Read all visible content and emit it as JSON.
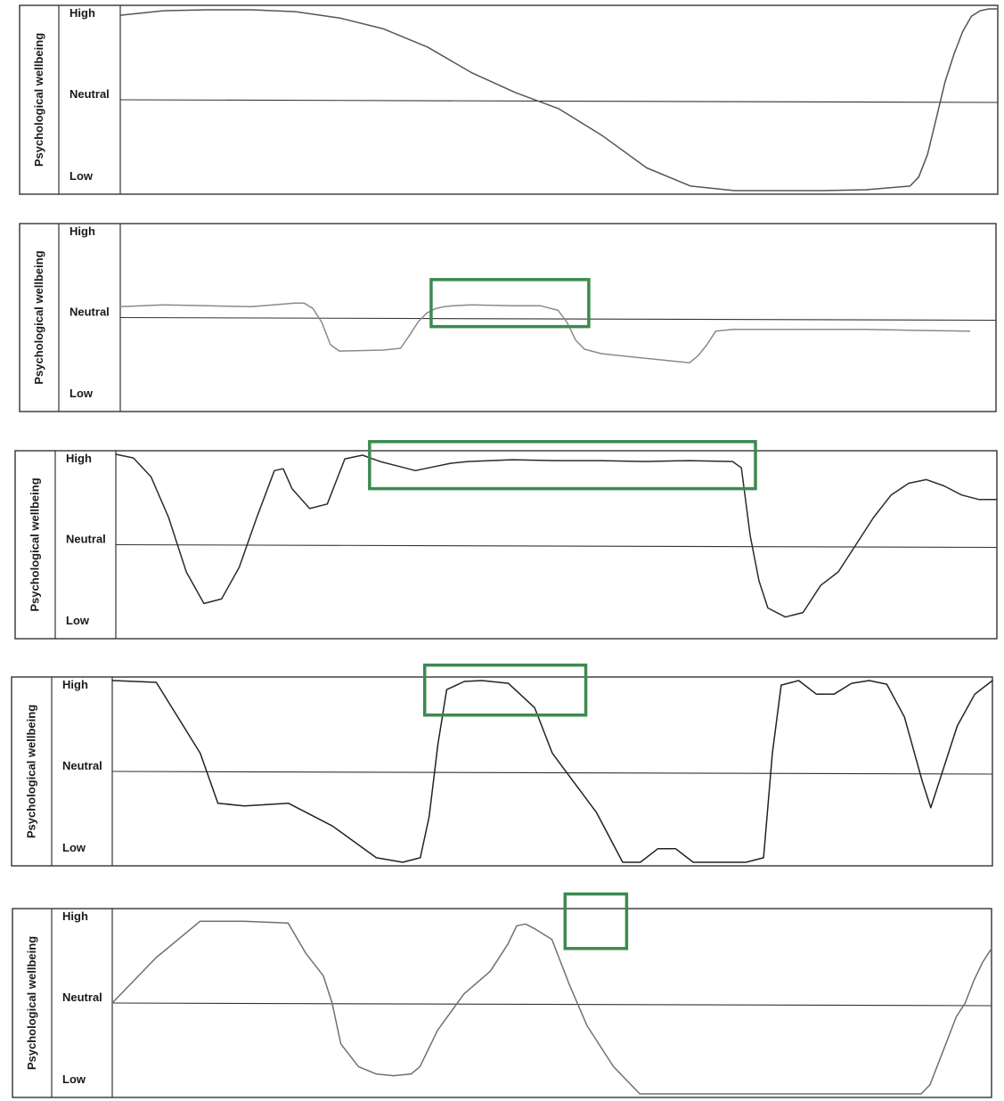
{
  "chart_data": [
    {
      "type": "line",
      "ylabel": "Psychological wellbeing",
      "ytick_labels": [
        "High",
        "Neutral",
        "Low"
      ],
      "ylim": [
        -1,
        1
      ],
      "xlim": [
        0,
        100
      ],
      "line_color": "#555555",
      "x": [
        0,
        5,
        10,
        15,
        20,
        25,
        30,
        35,
        40,
        45,
        50,
        55,
        60,
        65,
        70,
        75,
        80,
        85,
        90,
        91,
        92,
        93,
        94,
        95,
        96,
        97,
        98,
        99,
        100
      ],
      "y": [
        0.93,
        0.98,
        0.99,
        0.99,
        0.97,
        0.9,
        0.78,
        0.58,
        0.3,
        0.08,
        -0.1,
        -0.4,
        -0.75,
        -0.95,
        -1,
        -1,
        -1,
        -0.99,
        -0.95,
        -0.85,
        -0.6,
        -0.2,
        0.2,
        0.5,
        0.75,
        0.92,
        0.98,
        1,
        1
      ],
      "highlights": []
    },
    {
      "type": "line",
      "ylabel": "Psychological wellbeing",
      "ytick_labels": [
        "High",
        "Neutral",
        "Low"
      ],
      "ylim": [
        -1,
        1
      ],
      "xlim": [
        0,
        100
      ],
      "line_color": "#8a8a8a",
      "x": [
        0,
        5,
        10,
        15,
        20,
        21,
        22,
        23,
        24,
        25,
        30,
        32,
        33,
        34,
        35,
        36,
        37,
        38,
        40,
        45,
        48,
        50,
        51,
        52,
        53,
        55,
        60,
        65,
        66,
        67,
        68,
        70,
        75,
        80,
        85,
        90,
        97
      ],
      "y": [
        0.12,
        0.14,
        0.13,
        0.12,
        0.16,
        0.16,
        0.1,
        -0.05,
        -0.3,
        -0.37,
        -0.36,
        -0.34,
        -0.2,
        -0.05,
        0.05,
        0.1,
        0.12,
        0.13,
        0.14,
        0.13,
        0.13,
        0.08,
        -0.05,
        -0.25,
        -0.35,
        -0.4,
        -0.45,
        -0.5,
        -0.42,
        -0.3,
        -0.15,
        -0.13,
        -0.13,
        -0.13,
        -0.13,
        -0.14,
        -0.15
      ],
      "highlights": [
        {
          "x0": 35.5,
          "x1": 53.5,
          "y0": -0.1,
          "y1": 0.42
        }
      ]
    },
    {
      "type": "line",
      "ylabel": "Psychological wellbeing",
      "ytick_labels": [
        "High",
        "Neutral",
        "Low"
      ],
      "ylim": [
        -1,
        1
      ],
      "xlim": [
        0,
        100
      ],
      "line_color": "#2b2b2b",
      "x": [
        0,
        2,
        4,
        6,
        8,
        10,
        12,
        14,
        16,
        18,
        19,
        20,
        22,
        24,
        26,
        28,
        30,
        32,
        34,
        36,
        38,
        40,
        45,
        50,
        55,
        60,
        65,
        70,
        71,
        72,
        73,
        74,
        76,
        78,
        80,
        82,
        84,
        86,
        88,
        90,
        92,
        94,
        96,
        98,
        100
      ],
      "y": [
        1,
        0.96,
        0.75,
        0.3,
        -0.3,
        -0.65,
        -0.6,
        -0.25,
        0.3,
        0.82,
        0.84,
        0.62,
        0.4,
        0.45,
        0.95,
        0.99,
        0.92,
        0.87,
        0.82,
        0.86,
        0.9,
        0.92,
        0.94,
        0.93,
        0.93,
        0.92,
        0.93,
        0.92,
        0.85,
        0.1,
        -0.4,
        -0.7,
        -0.8,
        -0.75,
        -0.45,
        -0.3,
        0.0,
        0.3,
        0.55,
        0.68,
        0.72,
        0.65,
        0.55,
        0.5,
        0.5
      ],
      "highlights": [
        {
          "x0": 28.8,
          "x1": 72.6,
          "y0": 0.62,
          "y1": 1.14
        }
      ]
    },
    {
      "type": "line",
      "ylabel": "Psychological wellbeing",
      "ytick_labels": [
        "High",
        "Neutral",
        "Low"
      ],
      "ylim": [
        -1,
        1
      ],
      "xlim": [
        0,
        100
      ],
      "line_color": "#222222",
      "x": [
        0,
        5,
        10,
        12,
        15,
        20,
        25,
        30,
        33,
        35,
        36,
        37,
        38,
        40,
        42,
        45,
        48,
        50,
        55,
        58,
        60,
        62,
        64,
        66,
        68,
        70,
        72,
        74,
        75,
        76,
        78,
        80,
        82,
        84,
        86,
        88,
        90,
        92,
        93,
        94,
        95,
        96,
        98,
        100
      ],
      "y": [
        1,
        0.98,
        0.2,
        -0.35,
        -0.38,
        -0.35,
        -0.6,
        -0.95,
        -1,
        -0.95,
        -0.5,
        0.3,
        0.9,
        0.99,
        1,
        0.97,
        0.7,
        0.2,
        -0.45,
        -1,
        -1,
        -0.85,
        -0.85,
        -1,
        -1,
        -1,
        -1,
        -0.95,
        0.2,
        0.95,
        1,
        0.85,
        0.85,
        0.97,
        1,
        0.96,
        0.6,
        -0.1,
        -0.4,
        -0.1,
        0.2,
        0.5,
        0.85,
        1
      ],
      "highlights": [
        {
          "x0": 35.5,
          "x1": 53.8,
          "y0": 0.62,
          "y1": 1.17
        }
      ]
    },
    {
      "type": "line",
      "ylabel": "Psychological wellbeing",
      "ytick_labels": [
        "High",
        "Neutral",
        "Low"
      ],
      "ylim": [
        -1,
        1
      ],
      "xlim": [
        0,
        100
      ],
      "line_color": "#707070",
      "x": [
        0,
        5,
        10,
        15,
        20,
        22,
        24,
        25,
        26,
        28,
        30,
        32,
        34,
        35,
        37,
        40,
        43,
        45,
        46,
        47,
        48,
        50,
        52,
        54,
        57,
        60,
        62,
        64,
        66,
        70,
        72,
        75,
        80,
        85,
        90,
        92,
        93,
        95,
        96,
        97,
        98,
        99,
        100
      ],
      "y": [
        0,
        0.5,
        0.9,
        0.9,
        0.88,
        0.55,
        0.3,
        0.0,
        -0.45,
        -0.7,
        -0.78,
        -0.8,
        -0.78,
        -0.7,
        -0.3,
        0.1,
        0.35,
        0.65,
        0.85,
        0.87,
        0.82,
        0.7,
        0.2,
        -0.25,
        -0.7,
        -1,
        -1,
        -1,
        -1,
        -1,
        -1,
        -1,
        -1,
        -1,
        -1,
        -1,
        -0.9,
        -0.4,
        -0.15,
        0.0,
        0.25,
        0.45,
        0.6
      ],
      "highlights": [
        {
          "x0": 51.5,
          "x1": 58.5,
          "y0": 0.6,
          "y1": 1.2
        }
      ]
    }
  ],
  "colors": {
    "highlight": "#3c8a50",
    "axis": "#333333",
    "text": "#1a1a1a"
  }
}
